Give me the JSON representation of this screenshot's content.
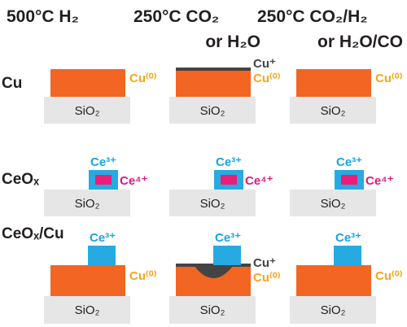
{
  "headers": {
    "col1": {
      "line1": "500°C H₂"
    },
    "col2": {
      "line1": "250°C CO₂",
      "line2": "or H₂O"
    },
    "col3": {
      "line1": "250°C CO₂/H₂",
      "line2": "or H₂O/CO"
    }
  },
  "rows": {
    "cu": {
      "label": "Cu"
    },
    "ceox": {
      "label": "CeOₓ"
    },
    "ceoxcu": {
      "label": "CeOₓ/Cu"
    }
  },
  "labels": {
    "substrate": "SiO₂",
    "cu0": "Cu⁽⁰⁾",
    "cuplus": "Cu⁺",
    "ce3": "Ce³⁺",
    "ce4": "Ce⁴⁺"
  },
  "colors": {
    "copper": "#f26522",
    "substrate": "#e6e6e6",
    "ceria_shell": "#27aae1",
    "ceria_core": "#ec1c79",
    "oxide": "#444444"
  }
}
